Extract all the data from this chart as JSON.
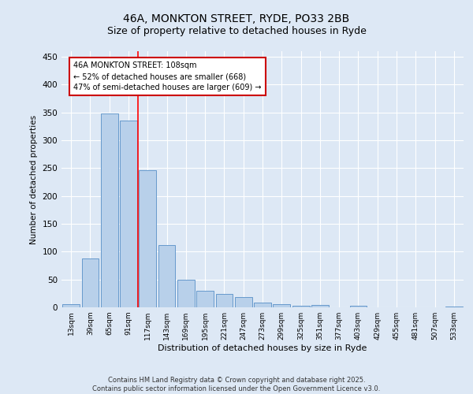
{
  "title1": "46A, MONKTON STREET, RYDE, PO33 2BB",
  "title2": "Size of property relative to detached houses in Ryde",
  "xlabel": "Distribution of detached houses by size in Ryde",
  "ylabel": "Number of detached properties",
  "categories": [
    "13sqm",
    "39sqm",
    "65sqm",
    "91sqm",
    "117sqm",
    "143sqm",
    "169sqm",
    "195sqm",
    "221sqm",
    "247sqm",
    "273sqm",
    "299sqm",
    "325sqm",
    "351sqm",
    "377sqm",
    "403sqm",
    "429sqm",
    "455sqm",
    "481sqm",
    "507sqm",
    "533sqm"
  ],
  "values": [
    5,
    88,
    348,
    336,
    246,
    112,
    49,
    30,
    24,
    19,
    9,
    5,
    3,
    4,
    0,
    3,
    0,
    0,
    0,
    0,
    1
  ],
  "bar_color": "#b8d0ea",
  "bar_edge_color": "#6699cc",
  "red_line_x": 3.5,
  "annotation_text": "46A MONKTON STREET: 108sqm\n← 52% of detached houses are smaller (668)\n47% of semi-detached houses are larger (609) →",
  "annotation_box_color": "#ffffff",
  "annotation_box_edge": "#cc0000",
  "ylim": [
    0,
    460
  ],
  "yticks": [
    0,
    50,
    100,
    150,
    200,
    250,
    300,
    350,
    400,
    450
  ],
  "footer": "Contains HM Land Registry data © Crown copyright and database right 2025.\nContains public sector information licensed under the Open Government Licence v3.0.",
  "bg_color": "#dde8f5",
  "plot_bg_color": "#dde8f5",
  "title1_fontsize": 10,
  "title2_fontsize": 9,
  "grid_color": "#ffffff"
}
